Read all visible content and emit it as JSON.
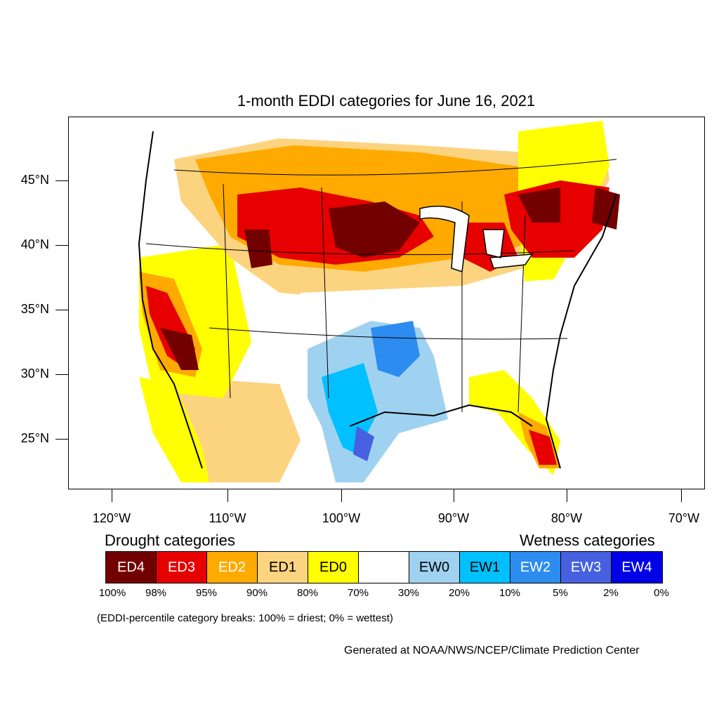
{
  "title": "1-month EDDI categories for June 16, 2021",
  "axes": {
    "y_labels": [
      "45°N",
      "40°N",
      "35°N",
      "30°N",
      "25°N"
    ],
    "x_labels": [
      "120°W",
      "110°W",
      "100°W",
      "90°W",
      "80°W",
      "70°W"
    ]
  },
  "legend": {
    "drought_heading": "Drought categories",
    "wetness_heading": "Wetness categories",
    "categories": [
      {
        "label": "ED4",
        "color": "#730000",
        "text_color": "#ffffff"
      },
      {
        "label": "ED3",
        "color": "#e60000",
        "text_color": "#ffffff"
      },
      {
        "label": "ED2",
        "color": "#ffaa00",
        "text_color": "#ffffff"
      },
      {
        "label": "ED1",
        "color": "#fcd37f",
        "text_color": "#000000"
      },
      {
        "label": "ED0",
        "color": "#ffff00",
        "text_color": "#000000"
      },
      {
        "label": "",
        "color": "#ffffff",
        "text_color": "#000000"
      },
      {
        "label": "EW0",
        "color": "#9fd2f0",
        "text_color": "#000000"
      },
      {
        "label": "EW1",
        "color": "#00c0ff",
        "text_color": "#000000"
      },
      {
        "label": "EW2",
        "color": "#2c8cf0",
        "text_color": "#ffffff"
      },
      {
        "label": "EW3",
        "color": "#4660e0",
        "text_color": "#ffffff"
      },
      {
        "label": "EW4",
        "color": "#0000e6",
        "text_color": "#ffffff"
      }
    ],
    "percentiles": [
      "100%",
      "98%",
      "95%",
      "90%",
      "80%",
      "70%",
      "30%",
      "20%",
      "10%",
      "5%",
      "2%",
      "0%"
    ]
  },
  "note": "(EDDI-percentile category breaks: 100% = driest; 0% = wettest)",
  "credit": "Generated at NOAA/NWS/NCEP/Climate Prediction Center"
}
